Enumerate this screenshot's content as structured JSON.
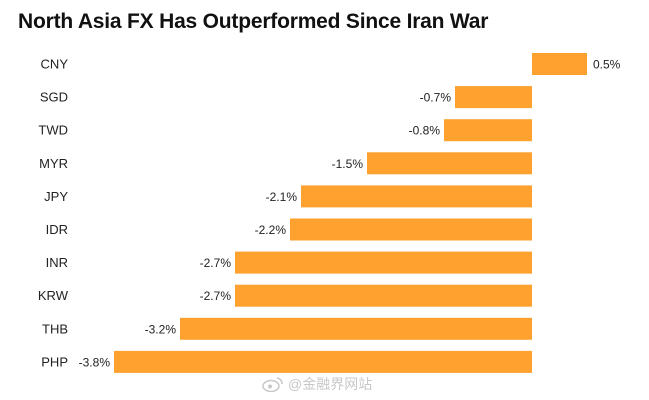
{
  "title": "North Asia FX Has Outperformed Since Iran War",
  "watermark": "@金融界网站",
  "chart_data": {
    "type": "bar",
    "orientation": "horizontal",
    "title": "North Asia FX Has Outperformed Since Iran War",
    "categories": [
      "CNY",
      "SGD",
      "TWD",
      "MYR",
      "JPY",
      "IDR",
      "INR",
      "KRW",
      "THB",
      "PHP"
    ],
    "values": [
      0.5,
      -0.7,
      -0.8,
      -1.5,
      -2.1,
      -2.2,
      -2.7,
      -2.7,
      -3.2,
      -3.8
    ],
    "value_labels": [
      "0.5%",
      "-0.7%",
      "-0.8%",
      "-1.5%",
      "-2.1%",
      "-2.2%",
      "-2.7%",
      "-2.7%",
      "-3.2%",
      "-3.8%"
    ],
    "xlim": [
      -3.8,
      0.5
    ],
    "unit": "%",
    "bar_color": "#FFA12E",
    "xlabel": "",
    "ylabel": ""
  }
}
